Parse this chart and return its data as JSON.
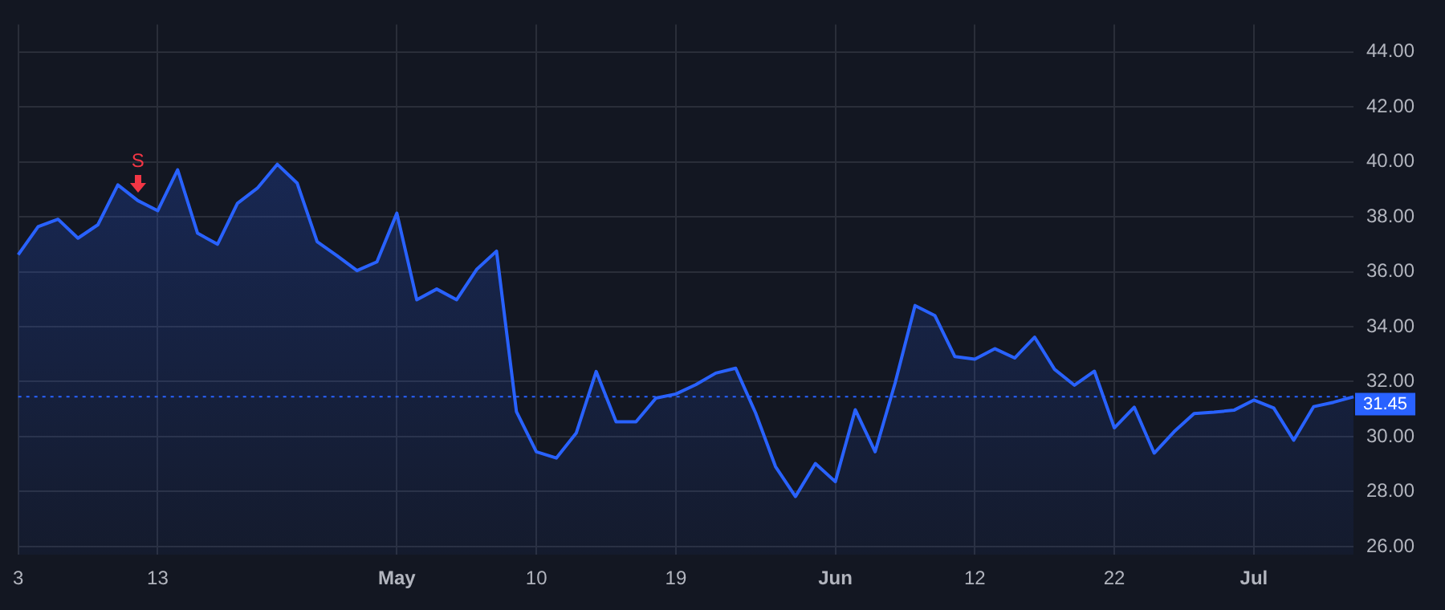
{
  "chart_data": {
    "type": "area",
    "categories": [
      "3",
      null,
      null,
      null,
      null,
      null,
      null,
      "13",
      null,
      null,
      null,
      null,
      null,
      null,
      null,
      null,
      null,
      null,
      null,
      "May",
      null,
      null,
      null,
      null,
      null,
      null,
      "10",
      null,
      null,
      null,
      null,
      null,
      null,
      "19",
      null,
      null,
      null,
      null,
      null,
      null,
      null,
      "Jun",
      null,
      null,
      null,
      null,
      null,
      null,
      "12",
      null,
      null,
      null,
      null,
      null,
      null,
      "22",
      null,
      null,
      null,
      null,
      null,
      null,
      "Jul",
      null,
      null,
      null,
      null,
      null
    ],
    "series": [
      {
        "color": "#2962ff",
        "values": [
          36.62,
          37.64,
          37.91,
          37.22,
          37.71,
          39.16,
          38.59,
          38.22,
          39.71,
          37.4,
          37.0,
          38.49,
          39.04,
          39.91,
          39.22,
          37.09,
          36.58,
          36.04,
          36.36,
          38.13,
          34.98,
          35.37,
          34.98,
          36.08,
          36.75,
          30.91,
          29.45,
          29.22,
          30.13,
          32.37,
          30.54,
          30.54,
          31.4,
          31.55,
          31.89,
          32.31,
          32.49,
          30.86,
          28.91,
          27.82,
          29.02,
          28.36,
          30.98,
          29.45,
          31.95,
          34.77,
          34.4,
          32.91,
          32.82,
          33.2,
          32.86,
          33.62,
          32.45,
          31.87,
          32.38,
          30.32,
          31.07,
          29.4,
          30.18,
          30.84,
          30.89,
          30.96,
          31.33,
          31.04,
          29.87,
          31.09,
          31.25,
          31.45
        ]
      }
    ],
    "ylim": [
      25.7,
      45
    ],
    "yticks": [
      {
        "value": 26,
        "label": "26.00"
      },
      {
        "value": 28,
        "label": "28.00"
      },
      {
        "value": 30,
        "label": "30.00"
      },
      {
        "value": 32,
        "label": "32.00"
      },
      {
        "value": 34,
        "label": "34.00"
      },
      {
        "value": 36,
        "label": "36.00"
      },
      {
        "value": 38,
        "label": "38.00"
      },
      {
        "value": 40,
        "label": "40.00"
      },
      {
        "value": 42,
        "label": "42.00"
      },
      {
        "value": 44,
        "label": "44.00"
      }
    ],
    "ref_lines": [
      {
        "axis": "y",
        "value": 31.45,
        "label": "31.45",
        "color": "#2962ff",
        "line_style": "dotted"
      }
    ],
    "annotations": [
      {
        "text": "S",
        "y": 38.59
      }
    ],
    "grid": true,
    "legend": false,
    "marker": "none",
    "line_style": "solid"
  }
}
